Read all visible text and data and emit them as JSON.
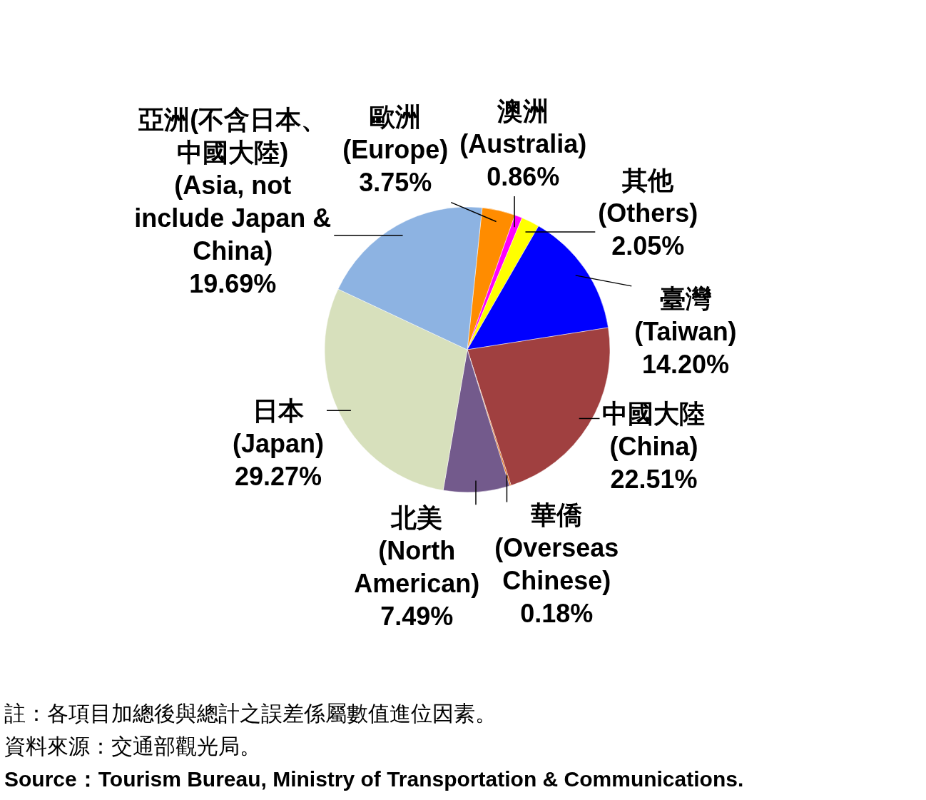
{
  "chart_data": {
    "type": "pie",
    "categories": [
      "歐洲 (Europe)",
      "澳洲 (Australia)",
      "其他 (Others)",
      "臺灣 (Taiwan)",
      "中國大陸 (China)",
      "華僑 (Overseas Chinese)",
      "北美 (North American)",
      "日本 (Japan)",
      "亞洲(不含日本、中國大陸) (Asia, not include Japan & China)"
    ],
    "values": [
      3.75,
      0.86,
      2.05,
      14.2,
      22.51,
      0.18,
      7.49,
      29.27,
      19.69
    ],
    "value_labels": [
      "3.75%",
      "0.86%",
      "2.05%",
      "14.20%",
      "22.51%",
      "0.18%",
      "7.49%",
      "29.27%",
      "19.69%"
    ],
    "colors": [
      "#ff8c00",
      "#ff00ff",
      "#ffff00",
      "#0000ff",
      "#a04040",
      "#e07020",
      "#735a8c",
      "#d7e0bc",
      "#8db3e2"
    ],
    "legend": false,
    "annotations": [
      "註：各項目加總後與總計之誤差係屬數值進位因素。",
      "資料來源：交通部觀光局。",
      "Source：Tourism Bureau, Ministry of Transportation & Communications."
    ]
  }
}
